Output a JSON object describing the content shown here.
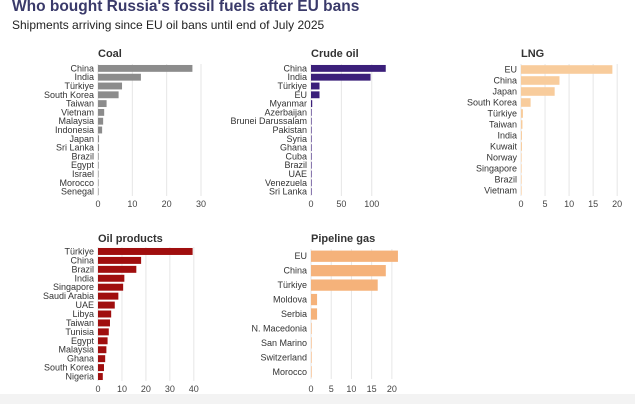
{
  "header": {
    "title": "Who bought Russia's fossil fuels after EU bans",
    "subtitle": "Shipments arriving since EU oil bans until end of July 2025"
  },
  "chart_data": [
    {
      "type": "bar",
      "orientation": "horizontal",
      "title": "Coal",
      "color": "#8c8c8c",
      "categories": [
        "China",
        "India",
        "Türkiye",
        "South Korea",
        "Taiwan",
        "Vietnam",
        "Malaysia",
        "Indonesia",
        "Japan",
        "Sri Lanka",
        "Brazil",
        "Egypt",
        "Israel",
        "Morocco",
        "Senegal"
      ],
      "values": [
        27.5,
        12.5,
        7,
        6,
        2.5,
        1.8,
        1.5,
        1.2,
        0.3,
        0.3,
        0.2,
        0.2,
        0.15,
        0.1,
        0.1
      ],
      "xlim": [
        0,
        30
      ],
      "xticks": [
        0,
        10,
        20,
        30
      ]
    },
    {
      "type": "bar",
      "orientation": "horizontal",
      "title": "Crude oil",
      "color": "#3b1f7a",
      "categories": [
        "China",
        "India",
        "Türkiye",
        "EU",
        "Myanmar",
        "Azerbaijan",
        "Brunei Darussalam",
        "Pakistan",
        "Syria",
        "Ghana",
        "Cuba",
        "Brazil",
        "UAE",
        "Venezuela",
        "Sri Lanka"
      ],
      "values": [
        123,
        98,
        14,
        14,
        2,
        0.5,
        0.5,
        0.5,
        0.4,
        0.3,
        0.3,
        0.3,
        0.2,
        0.2,
        0.2
      ],
      "xlim": [
        0,
        130
      ],
      "xticks": [
        0,
        50,
        100
      ]
    },
    {
      "type": "bar",
      "orientation": "horizontal",
      "title": "LNG",
      "color": "#f8cc9c",
      "categories": [
        "EU",
        "China",
        "Japan",
        "South Korea",
        "Türkiye",
        "Taiwan",
        "India",
        "Kuwait",
        "Norway",
        "Singapore",
        "Brazil",
        "Vietnam"
      ],
      "values": [
        19,
        8,
        7,
        2,
        0.4,
        0.3,
        0.2,
        0.2,
        0.1,
        0.1,
        0.1,
        0.1
      ],
      "xlim": [
        0,
        21
      ],
      "xticks": [
        0,
        5,
        10,
        15,
        20
      ]
    },
    {
      "type": "bar",
      "orientation": "horizontal",
      "title": "Oil products",
      "color": "#a00e0e",
      "categories": [
        "Türkiye",
        "China",
        "Brazil",
        "India",
        "Singapore",
        "Saudi Arabia",
        "UAE",
        "Libya",
        "Taiwan",
        "Tunisia",
        "Egypt",
        "Malaysia",
        "Ghana",
        "South Korea",
        "Nigeria"
      ],
      "values": [
        39.5,
        18,
        16,
        11,
        10.5,
        8.5,
        7,
        5.5,
        5,
        4.5,
        4,
        3.5,
        3,
        2.5,
        2
      ],
      "xlim": [
        0,
        43
      ],
      "xticks": [
        0,
        10,
        20,
        30,
        40
      ]
    },
    {
      "type": "bar",
      "orientation": "horizontal",
      "title": "Pipeline gas",
      "color": "#f5b27a",
      "categories": [
        "EU",
        "China",
        "Türkiye",
        "Moldova",
        "Serbia",
        "N. Macedonia",
        "San Marino",
        "Switzerland",
        "Morocco"
      ],
      "values": [
        21.5,
        18.5,
        16.5,
        1.5,
        1.5,
        0.1,
        0.05,
        0.05,
        0.05
      ],
      "xlim": [
        0,
        23
      ],
      "xticks": [
        0,
        5,
        10,
        15,
        20
      ]
    }
  ]
}
